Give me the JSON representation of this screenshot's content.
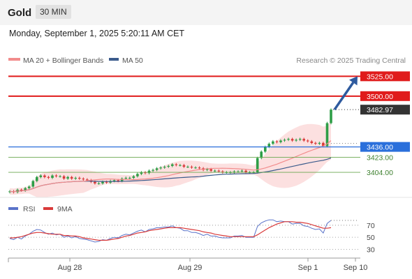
{
  "header": {
    "symbol": "Gold",
    "interval": "30 MIN",
    "datetime": "Monday, September 1, 2025 5:20:11 AM CET"
  },
  "legend": {
    "ma20_label": "MA 20 + Bollinger Bands",
    "ma50_label": "MA 50",
    "copyright": "Research © 2025 Trading Central",
    "rsi_label": "RSI",
    "ma9_label": "9MA"
  },
  "colors": {
    "up_candle": "#2e9e47",
    "down_candle": "#d93a3a",
    "ma20": "#f28c8c",
    "bollinger_fill": "#fbd6d6",
    "ma50": "#3b5b8c",
    "resistance": "#e01b1b",
    "support": "#2a6fdb",
    "minor_support": "#6aa84f",
    "rsi": "#5a73c9",
    "rsi_ma": "#d93a3a",
    "arrow": "#2e5a9e",
    "current_price_bg": "#333333"
  },
  "chart_data": {
    "type": "candlestick",
    "x_tick_labels": [
      "Aug 28",
      "Aug 29",
      "Sep 1",
      "Sep 10"
    ],
    "price_levels": [
      {
        "value": 3525.0,
        "label": "3525.00",
        "type": "resistance"
      },
      {
        "value": 3500.0,
        "label": "3500.00",
        "type": "resistance"
      },
      {
        "value": 3482.97,
        "label": "3482.97",
        "type": "current"
      },
      {
        "value": 3436.0,
        "label": "3436.00",
        "type": "support"
      },
      {
        "value": 3423.0,
        "label": "3423.00",
        "type": "minor_support"
      },
      {
        "value": 3404.0,
        "label": "3404.00",
        "type": "minor_support"
      }
    ],
    "projection": {
      "from": 3482.97,
      "to": 3525.0
    },
    "ylim": [
      3375,
      3535
    ],
    "close": [
      3380,
      3379,
      3382,
      3381,
      3384,
      3386,
      3393,
      3398,
      3400,
      3398,
      3397,
      3400,
      3399,
      3399,
      3396,
      3398,
      3396,
      3397,
      3396,
      3395,
      3394,
      3392,
      3390,
      3390,
      3392,
      3391,
      3393,
      3394,
      3393,
      3396,
      3397,
      3397,
      3399,
      3402,
      3404,
      3403,
      3406,
      3407,
      3409,
      3410,
      3411,
      3412,
      3414,
      3413,
      3413,
      3411,
      3411,
      3410,
      3410,
      3409,
      3407,
      3408,
      3406,
      3406,
      3405,
      3404,
      3404,
      3404,
      3405,
      3405,
      3406,
      3404,
      3404,
      3404,
      3422,
      3430,
      3436,
      3440,
      3443,
      3442,
      3444,
      3445,
      3446,
      3444,
      3445,
      3446,
      3444,
      3443,
      3441,
      3440,
      3441,
      3437,
      3466,
      3482.97
    ],
    "rsi_axis_ticks": [
      70,
      50,
      30
    ],
    "rsi": [
      48,
      46,
      50,
      47,
      52,
      55,
      60,
      63,
      62,
      58,
      55,
      57,
      54,
      55,
      50,
      52,
      49,
      51,
      48,
      47,
      46,
      44,
      42,
      43,
      46,
      45,
      48,
      50,
      49,
      53,
      55,
      54,
      57,
      60,
      62,
      59,
      63,
      64,
      66,
      66,
      67,
      67,
      69,
      66,
      65,
      61,
      61,
      58,
      58,
      56,
      53,
      55,
      52,
      52,
      50,
      49,
      49,
      49,
      52,
      52,
      53,
      50,
      50,
      50,
      68,
      74,
      77,
      79,
      79,
      76,
      77,
      76,
      76,
      72,
      73,
      73,
      69,
      68,
      65,
      63,
      64,
      57,
      73,
      78
    ],
    "rsi_ma9": [
      49,
      49,
      50,
      51,
      53,
      55,
      57,
      58,
      58,
      57,
      56,
      55,
      55,
      55,
      53,
      53,
      52,
      52,
      51,
      49,
      48,
      47,
      46,
      45,
      45,
      45,
      46,
      47,
      48,
      50,
      52,
      53,
      55,
      57,
      58,
      59,
      61,
      62,
      63,
      64,
      65,
      66,
      66,
      66,
      66,
      65,
      64,
      63,
      62,
      61,
      59,
      58,
      57,
      55,
      54,
      53,
      52,
      51,
      51,
      51,
      51,
      51,
      51,
      51,
      54,
      58,
      62,
      66,
      69,
      72,
      74,
      76,
      76,
      76,
      75,
      75,
      74,
      73,
      71,
      69,
      67,
      65,
      65,
      66
    ]
  }
}
